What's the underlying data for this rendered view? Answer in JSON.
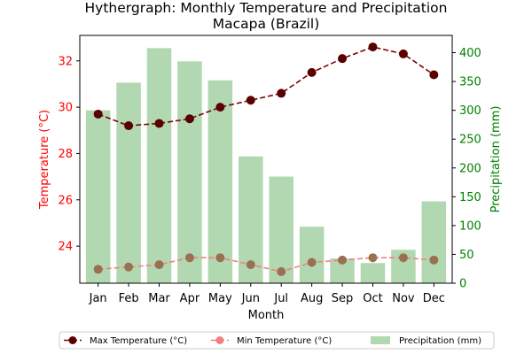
{
  "chart_data": {
    "type": "bar+line",
    "title": "Hythergraph: Monthly Temperature and Precipitation",
    "subtitle": "Macapa (Brazil)",
    "xlabel": "Month",
    "ylabel_left": "Temperature (°C)",
    "ylabel_right": "Precipitation (mm)",
    "categories": [
      "Jan",
      "Feb",
      "Mar",
      "Apr",
      "May",
      "Jun",
      "Jul",
      "Aug",
      "Sep",
      "Oct",
      "Nov",
      "Dec"
    ],
    "ylim_left": [
      22.4,
      33.1
    ],
    "yticks_left": [
      24,
      26,
      28,
      30,
      32
    ],
    "ylim_right": [
      0,
      430
    ],
    "yticks_right": [
      0,
      50,
      100,
      150,
      200,
      250,
      300,
      350,
      400
    ],
    "grid": false,
    "legend_position": "bottom",
    "series": [
      {
        "name": "Max Temperature (°C)",
        "kind": "line",
        "axis": "left",
        "color": "#800000",
        "values": [
          29.7,
          29.2,
          29.3,
          29.5,
          30.0,
          30.3,
          30.6,
          31.5,
          32.1,
          32.6,
          32.3,
          31.4
        ]
      },
      {
        "name": "Min Temperature (°C)",
        "kind": "line",
        "axis": "left",
        "color": "#f08080",
        "values": [
          23.0,
          23.1,
          23.2,
          23.5,
          23.5,
          23.2,
          22.9,
          23.3,
          23.4,
          23.5,
          23.5,
          23.4
        ]
      },
      {
        "name": "Precipitation (mm)",
        "kind": "bar",
        "axis": "right",
        "color": "#b2d8b2",
        "values": [
          300,
          348,
          408,
          385,
          352,
          220,
          185,
          98,
          43,
          35,
          58,
          142
        ]
      }
    ]
  },
  "colors": {
    "left_axis": "#ff0000",
    "right_axis": "#008000",
    "max_marker": "#5a0000",
    "min_marker": "#9a7050"
  }
}
